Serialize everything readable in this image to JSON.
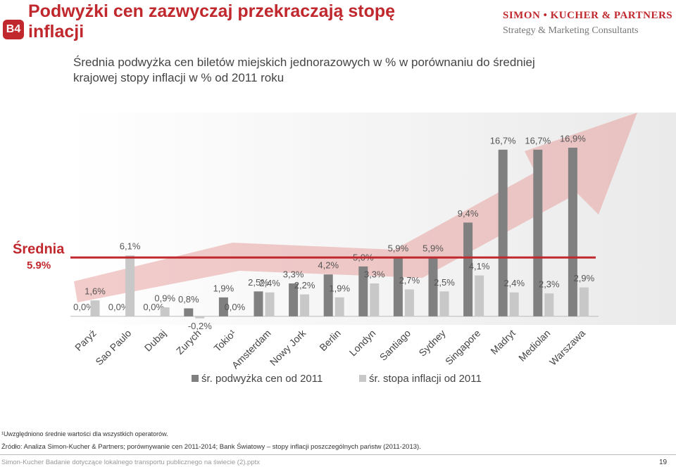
{
  "header": {
    "badge": "B4",
    "title": "Podwyżki cen zazwyczaj przekraczają stopę inflacji",
    "logo": "SIMON • KUCHER & PARTNERS",
    "logo_sub": "Strategy & Marketing Consultants"
  },
  "chart_data": {
    "type": "bar",
    "title": "Średnia podwyżka cen biletów miejskich jednorazowych w % w porównaniu do średniej krajowej stopy inflacji w % od 2011 roku",
    "categories": [
      "Paryż",
      "Sao Paulo",
      "Dubaj",
      "Zurych",
      "Tokio¹",
      "Amsterdam",
      "Nowy Jork",
      "Berlin",
      "Londyn",
      "Santiago",
      "Sydney",
      "Singapore",
      "Madryt",
      "Mediolan",
      "Warszawa"
    ],
    "series": [
      {
        "name": "śr. podwyżka cen od 2011",
        "color": "#808080",
        "values": [
          0.0,
          0.0,
          0.0,
          0.8,
          1.9,
          2.5,
          3.3,
          4.2,
          5.0,
          5.9,
          5.9,
          9.4,
          16.7,
          16.7,
          16.9
        ],
        "value_labels": [
          "0,0%",
          "0,0%",
          "0,0%",
          "0,8%",
          "1,9%",
          "2,5%",
          "3,3%",
          "4,2%",
          "5,0%",
          "5,9%",
          "5,9%",
          "9,4%",
          "16,7%",
          "16,7%",
          "16,9%"
        ]
      },
      {
        "name": "śr. stopa inflacji od 2011",
        "color": "#c8c8c8",
        "values": [
          1.6,
          6.1,
          0.9,
          -0.2,
          0.0,
          2.4,
          2.2,
          1.9,
          3.3,
          2.7,
          2.5,
          4.1,
          2.4,
          2.3,
          2.9
        ],
        "value_labels": [
          "1,6%",
          "6,1%",
          "0,9%",
          "-0,2%",
          "0,0%",
          "2,4%",
          "2,2%",
          "1,9%",
          "3,3%",
          "2,7%",
          "2,5%",
          "4,1%",
          "2,4%",
          "2,3%",
          "2,9%"
        ]
      }
    ],
    "ylim": [
      -1,
      20
    ],
    "average": {
      "label": "Średnia",
      "value": 5.9,
      "value_label": "5.9%",
      "color": "#c0282d"
    }
  },
  "footnotes": [
    "¹Uwzględniono średnie wartości dla wszystkich operatorów.",
    "Źródło: Analiza Simon-Kucher & Partners; porównywanie cen 2011-2014; Bank Światowy – stopy inflacji poszczególnych państw (2011-2013)."
  ],
  "footer": {
    "text": "Simon-Kucher Badanie dotyczące lokalnego transportu publicznego na świecie (2).pptx",
    "page": "19"
  }
}
